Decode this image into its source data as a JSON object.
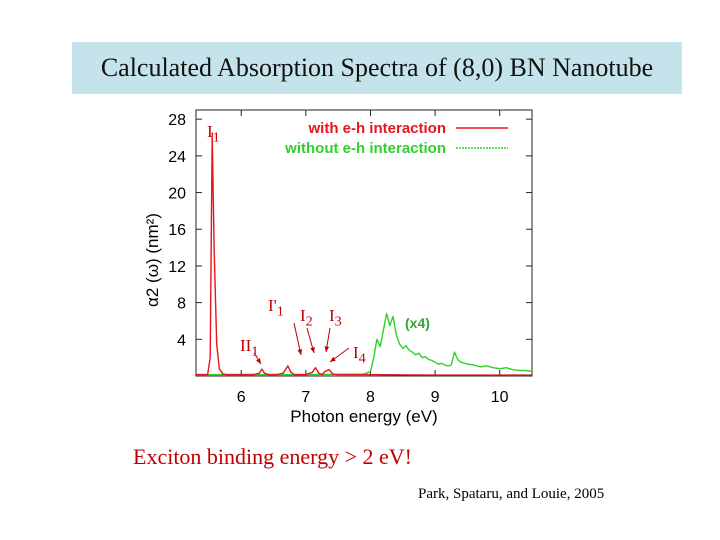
{
  "title": "Calculated Absorption Spectra of (8,0) BN Nanotube",
  "caption": "Exciton binding energy > 2 eV!",
  "credit": "Park, Spataru, and Louie, 2005",
  "colors": {
    "with_eh": "#e8141e",
    "without_eh": "#2ed12e",
    "title_bg": "#c5e3ea",
    "caption": "#c00000"
  },
  "chart_data": {
    "type": "line",
    "xlabel": "Photon energy (eV)",
    "ylabel": "α2 (ω)  (nm²)",
    "xlim": [
      5.3,
      10.5
    ],
    "ylim": [
      0,
      29
    ],
    "xticks": [
      6,
      7,
      8,
      9,
      10
    ],
    "yticks": [
      4,
      8,
      12,
      16,
      20,
      24,
      28
    ],
    "legend_position": "top-right",
    "series": [
      {
        "name": "with e-h interaction",
        "color": "#e8141e",
        "x": [
          5.3,
          5.48,
          5.52,
          5.55,
          5.58,
          5.62,
          5.66,
          5.72,
          5.78,
          6.2,
          6.28,
          6.32,
          6.36,
          6.42,
          6.55,
          6.65,
          6.72,
          6.77,
          6.82,
          6.9,
          7.0,
          7.1,
          7.15,
          7.2,
          7.25,
          7.3,
          7.36,
          7.42,
          7.5,
          8.0,
          8.6,
          9.0,
          10.5
        ],
        "y": [
          0.15,
          0.15,
          2.0,
          26.5,
          14.0,
          3.5,
          0.8,
          0.2,
          0.15,
          0.15,
          0.3,
          0.75,
          0.3,
          0.15,
          0.15,
          0.3,
          1.1,
          0.4,
          0.15,
          0.15,
          0.15,
          0.4,
          0.9,
          0.3,
          0.15,
          0.5,
          0.7,
          0.2,
          0.15,
          0.15,
          0.12,
          0.1,
          0.1
        ]
      },
      {
        "name": "without e-h interaction",
        "color": "#2ed12e",
        "x": [
          5.3,
          6.0,
          7.0,
          7.9,
          8.0,
          8.05,
          8.1,
          8.15,
          8.2,
          8.25,
          8.3,
          8.35,
          8.4,
          8.45,
          8.5,
          8.55,
          8.6,
          8.65,
          8.7,
          8.75,
          8.8,
          8.85,
          8.9,
          8.95,
          9.0,
          9.05,
          9.1,
          9.15,
          9.2,
          9.25,
          9.3,
          9.35,
          9.4,
          9.5,
          9.6,
          9.7,
          9.8,
          9.9,
          10.0,
          10.1,
          10.2,
          10.3,
          10.4,
          10.5
        ],
        "y": [
          0.15,
          0.15,
          0.15,
          0.2,
          0.5,
          2.0,
          4.0,
          3.2,
          5.0,
          6.8,
          5.5,
          6.5,
          4.5,
          3.5,
          3.0,
          3.3,
          2.8,
          2.6,
          2.3,
          2.5,
          2.0,
          2.1,
          1.8,
          1.7,
          1.5,
          1.3,
          1.4,
          1.2,
          1.1,
          1.2,
          2.6,
          1.8,
          1.5,
          1.3,
          1.2,
          1.0,
          1.1,
          0.9,
          0.8,
          0.9,
          0.7,
          0.6,
          0.6,
          0.5
        ]
      }
    ],
    "annotations": [
      {
        "html": "I<sub>1</sub>",
        "color": "#c00000"
      },
      {
        "html": "I'<sub>1</sub>",
        "color": "#c00000"
      },
      {
        "html": "II<sub>1</sub>",
        "color": "#c00000"
      },
      {
        "html": "I<sub>2</sub>",
        "color": "#c00000"
      },
      {
        "html": "I<sub>3</sub>",
        "color": "#c00000"
      },
      {
        "html": "I<sub>4</sub>",
        "color": "#c00000"
      },
      {
        "html": "(x4)",
        "color": "#2ea82e"
      }
    ]
  }
}
